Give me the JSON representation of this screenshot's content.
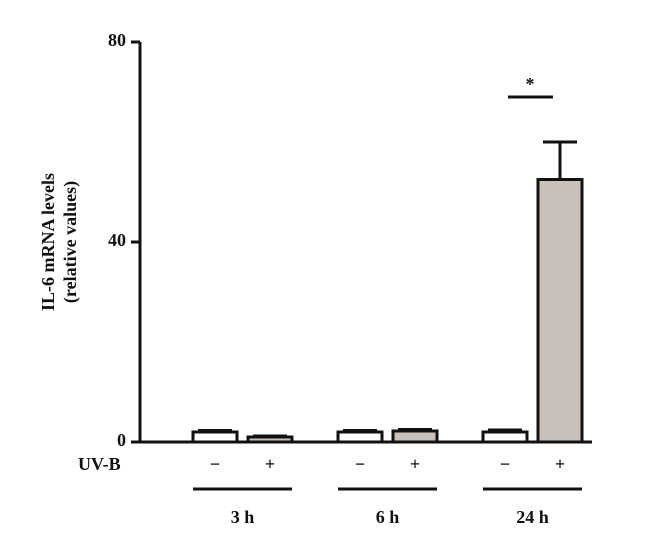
{
  "chart_data": {
    "type": "bar",
    "y_label": [
      "IL-6 mRNA levels",
      "(relative values)"
    ],
    "row_label": "UV-B",
    "categories": [
      "−",
      "+",
      "−",
      "+",
      "−",
      "+"
    ],
    "groups": [
      "3 h",
      "6 h",
      "24 h"
    ],
    "values": [
      2,
      1,
      2,
      2.2,
      2,
      52.5
    ],
    "errors": [
      0.3,
      0.2,
      0.3,
      0.3,
      0.4,
      7.5
    ],
    "colors": [
      "#ffffff",
      "#c9c1b9",
      "#ffffff",
      "#c9c1b9",
      "#ffffff",
      "#c9c1b9"
    ],
    "significance": "*",
    "ylim": [
      0,
      80
    ],
    "yticks": [
      0,
      40,
      80
    ]
  }
}
